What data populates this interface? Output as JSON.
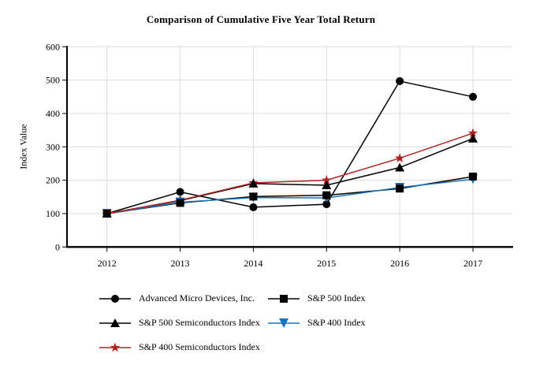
{
  "colors": {
    "axis": "#000000",
    "grid": "#dbdbdb",
    "text": "#000000",
    "amd_black": "#000000",
    "sp400_blue": "#1b72bc",
    "sp400_semi_red": "#b22220"
  },
  "chart_data": {
    "type": "line",
    "title": "Comparison of Cumulative Five Year Total Return",
    "xlabel": "",
    "ylabel": "Index Value",
    "ylim": [
      0,
      600
    ],
    "y_ticks": [
      0,
      100,
      200,
      300,
      400,
      500,
      600
    ],
    "categories": [
      "2012",
      "2013",
      "2014",
      "2015",
      "2016",
      "2017"
    ],
    "grid": true,
    "legend_position": "bottom",
    "series": [
      {
        "name": "Advanced Micro Devices, Inc.",
        "color": "#000000",
        "marker": "circle",
        "values": [
          100,
          165,
          119,
          128,
          497,
          450
        ]
      },
      {
        "name": "S&P 500 Index",
        "color": "#000000",
        "marker": "square",
        "values": [
          100,
          132,
          151,
          155,
          175,
          211
        ]
      },
      {
        "name": "S&P 500 Semiconductors Index",
        "color": "#000000",
        "marker": "triangle-up",
        "values": [
          100,
          139,
          190,
          185,
          238,
          325
        ]
      },
      {
        "name": "S&P 400 Index",
        "color": "#1b72bc",
        "marker": "triangle-down",
        "values": [
          100,
          134,
          148,
          147,
          178,
          203
        ]
      },
      {
        "name": "S&P 400 Semiconductors Index",
        "color": "#b22220",
        "marker": "star",
        "values": [
          100,
          140,
          192,
          200,
          266,
          341
        ]
      }
    ]
  }
}
